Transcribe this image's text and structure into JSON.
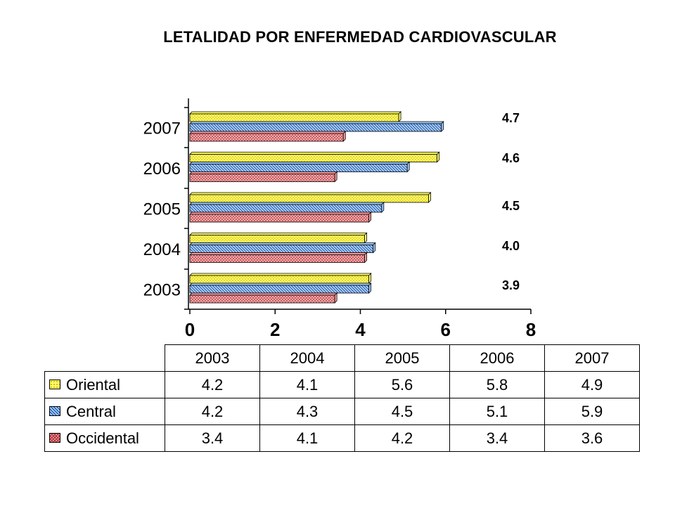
{
  "chart_data": {
    "type": "bar",
    "orientation": "horizontal",
    "style": "3d-clustered",
    "title": "LETALIDAD POR ENFERMEDAD CARDIOVASCULAR",
    "categories": [
      "2003",
      "2004",
      "2005",
      "2006",
      "2007"
    ],
    "category_order_on_axis": "bottom-to-top",
    "series": [
      {
        "name": "Oriental",
        "values": [
          4.2,
          4.1,
          5.6,
          5.8,
          4.9
        ],
        "color": "#ffff66",
        "pattern": "dots"
      },
      {
        "name": "Central",
        "values": [
          4.2,
          4.3,
          4.5,
          5.1,
          5.9
        ],
        "color": "#99ccff",
        "pattern": "diagonal-stripes"
      },
      {
        "name": "Occidental",
        "values": [
          3.4,
          4.1,
          4.2,
          3.4,
          3.6
        ],
        "color": "#ff9999",
        "pattern": "crosshatch"
      }
    ],
    "xlim": [
      0,
      8
    ],
    "xticks": [
      "0",
      "2",
      "4",
      "6",
      "8"
    ],
    "grid": false,
    "legend": "data-table-below",
    "annotations": [
      {
        "category": "2007",
        "text": "4.7"
      },
      {
        "category": "2006",
        "text": "4.6"
      },
      {
        "category": "2005",
        "text": "4.5"
      },
      {
        "category": "2004",
        "text": "4.0"
      },
      {
        "category": "2003",
        "text": "3.9"
      }
    ]
  }
}
